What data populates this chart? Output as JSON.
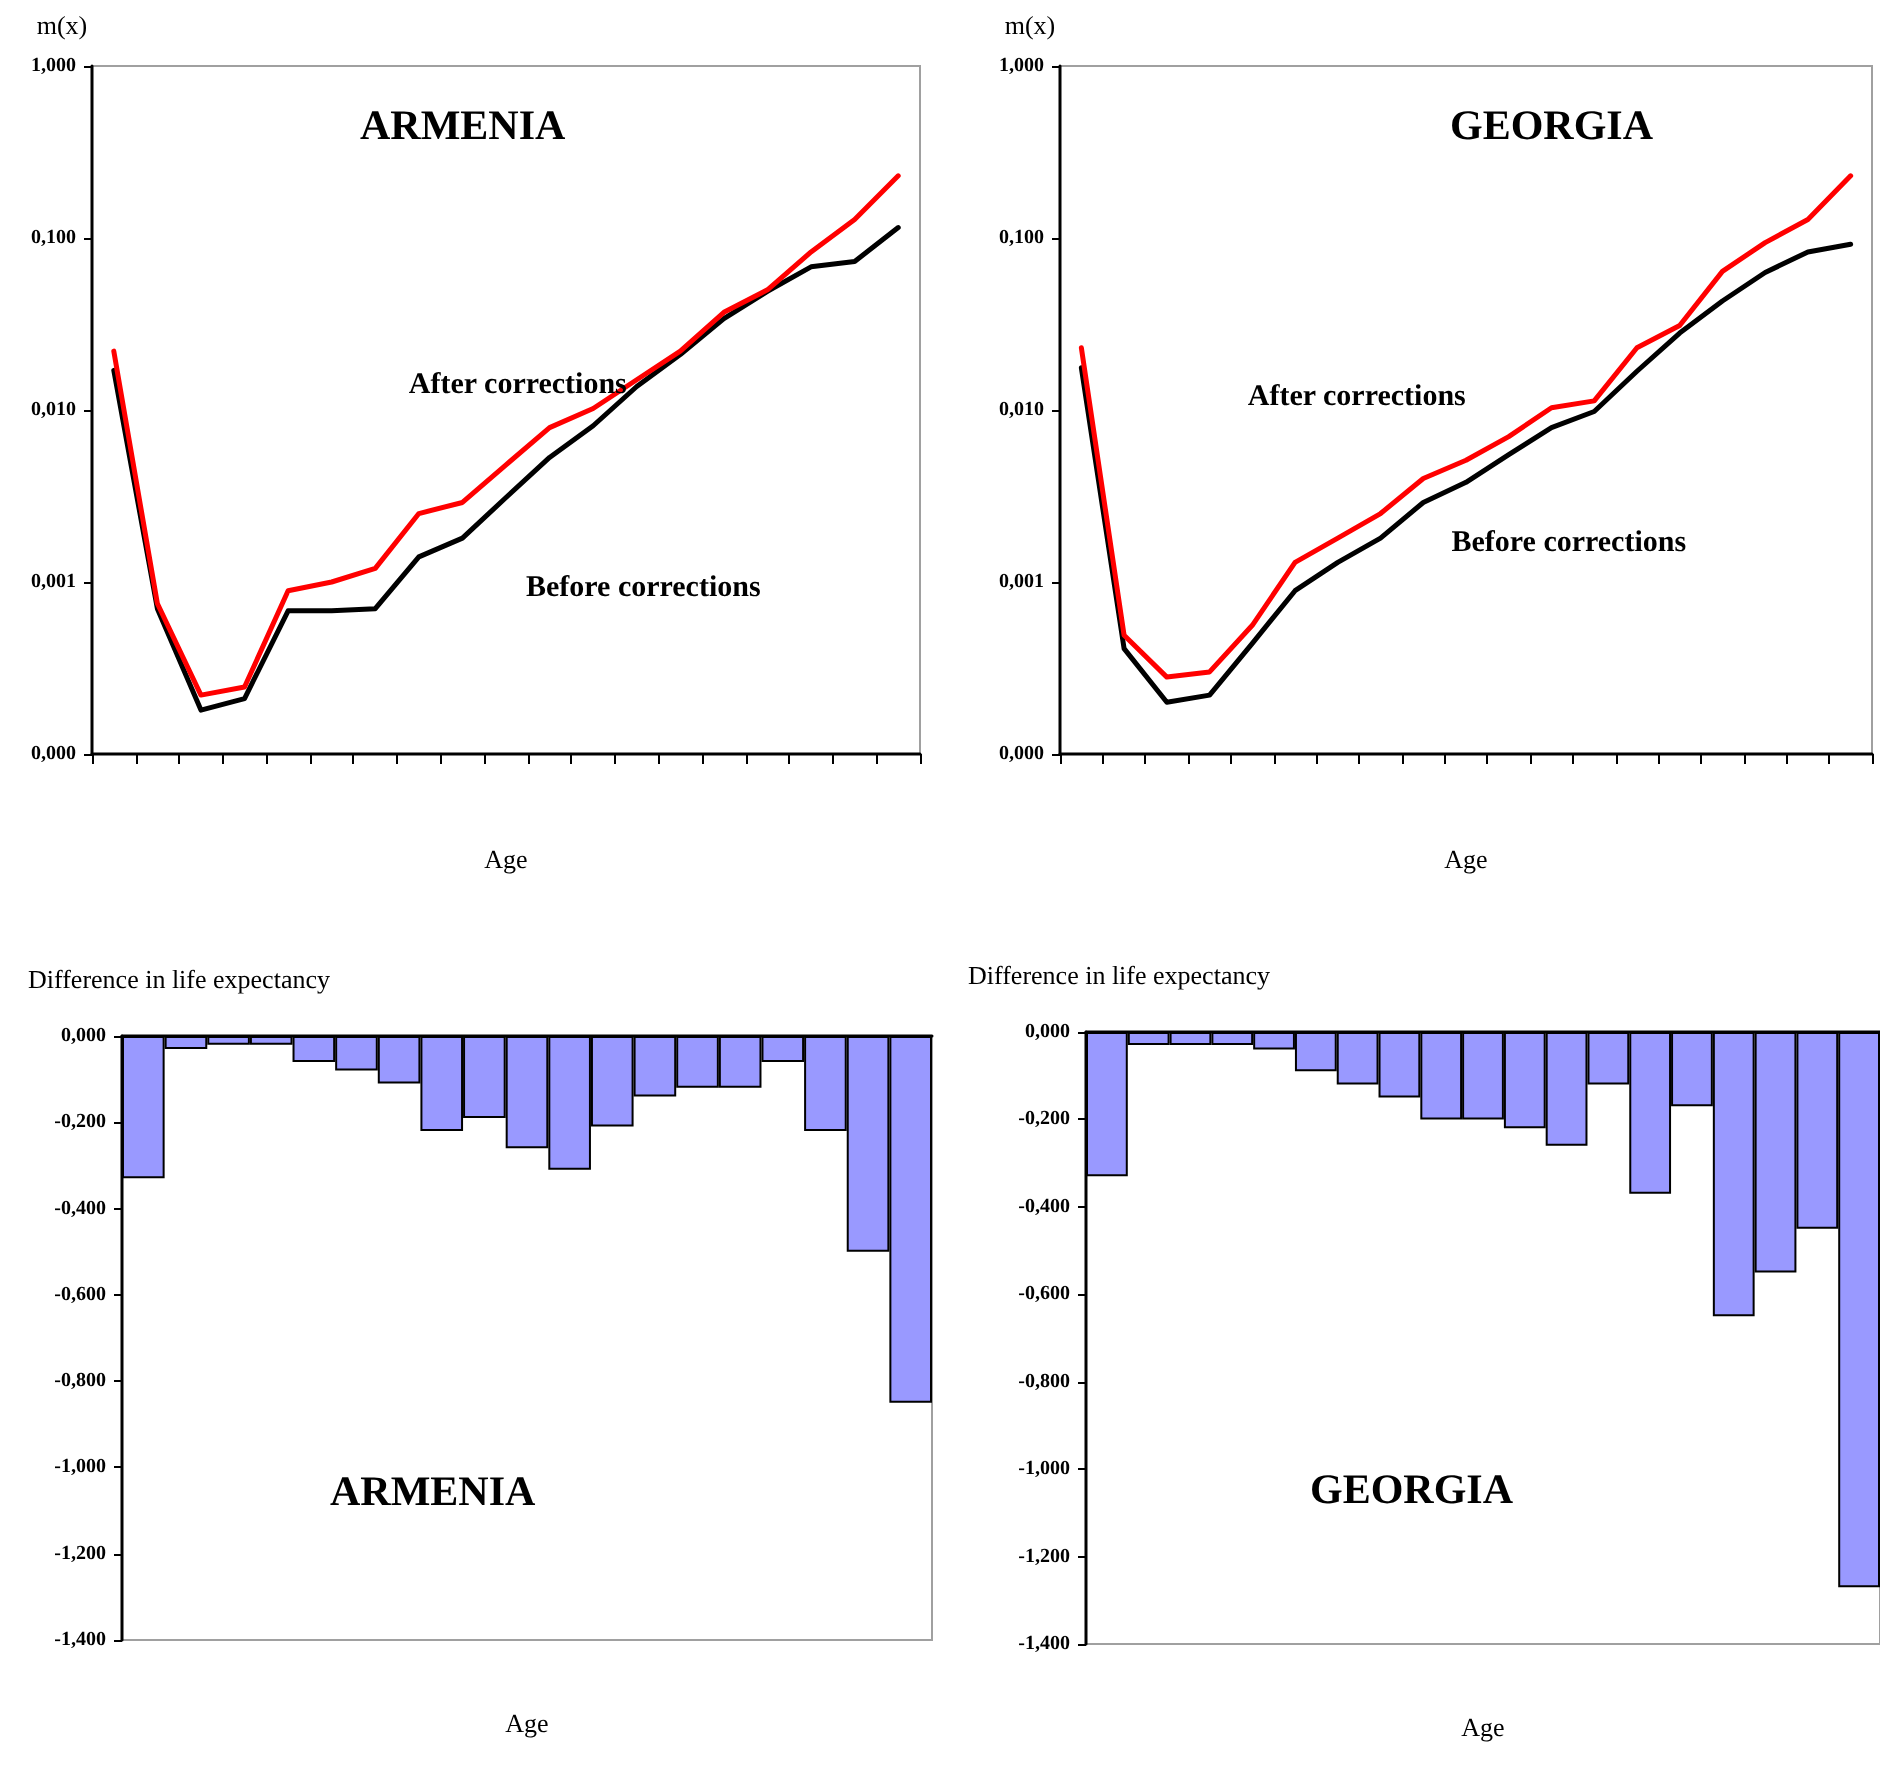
{
  "chart_data": [
    {
      "type": "line",
      "ylabel": "m(x)",
      "xlabel": "Age",
      "annotations": [
        "ARMENIA"
      ],
      "log": "y",
      "grid": false,
      "legend": false,
      "tick_labels": "y",
      "marker": "none",
      "line_style": "solid",
      "categories": [
        null,
        null,
        null,
        null,
        null,
        null,
        null,
        null,
        null,
        null,
        null,
        null,
        null,
        null,
        null,
        null,
        null,
        null,
        null
      ],
      "ylim": [
        0.0001,
        1
      ],
      "yticks": [
        {
          "value": 0.0001,
          "label": "0,000"
        },
        {
          "value": 0.001,
          "label": "0,001"
        },
        {
          "value": 0.01,
          "label": "0,010"
        },
        {
          "value": 0.1,
          "label": "0,100"
        },
        {
          "value": 1,
          "label": "1,000"
        }
      ],
      "series": [
        {
          "name": "After corrections",
          "color": "#ff0000",
          "values": [
            0.022,
            0.00075,
            0.00022,
            0.000245,
            0.00089,
            0.001,
            0.0012,
            0.0025,
            0.0029,
            0.0048,
            0.0079,
            0.0102,
            0.015,
            0.022,
            0.037,
            0.05,
            0.083,
            0.128,
            0.23
          ]
        },
        {
          "name": "Before corrections",
          "color": "#000000",
          "values": [
            0.017,
            0.0007,
            0.00018,
            0.00021,
            0.00068,
            0.00068,
            0.0007,
            0.0014,
            0.0018,
            0.0031,
            0.0053,
            0.0081,
            0.0137,
            0.021,
            0.034,
            0.049,
            0.068,
            0.073,
            0.115
          ]
        }
      ]
    },
    {
      "type": "line",
      "ylabel": "m(x)",
      "xlabel": "Age",
      "annotations": [
        "GEORGIA"
      ],
      "log": "y",
      "grid": false,
      "legend": false,
      "tick_labels": "y",
      "marker": "none",
      "line_style": "solid",
      "categories": [
        null,
        null,
        null,
        null,
        null,
        null,
        null,
        null,
        null,
        null,
        null,
        null,
        null,
        null,
        null,
        null,
        null,
        null,
        null
      ],
      "ylim": [
        0.0001,
        1
      ],
      "yticks": [
        {
          "value": 0.0001,
          "label": "0,000"
        },
        {
          "value": 0.001,
          "label": "0,001"
        },
        {
          "value": 0.01,
          "label": "0,010"
        },
        {
          "value": 0.1,
          "label": "0,100"
        },
        {
          "value": 1,
          "label": "1,000"
        }
      ],
      "series": [
        {
          "name": "After corrections",
          "color": "#ff0000",
          "values": [
            0.023,
            0.00049,
            0.00028,
            0.0003,
            0.00056,
            0.0013,
            0.0018,
            0.0025,
            0.004,
            0.0051,
            0.007,
            0.0103,
            0.0113,
            0.023,
            0.031,
            0.064,
            0.094,
            0.128,
            0.23
          ]
        },
        {
          "name": "Before corrections",
          "color": "#000000",
          "values": [
            0.0176,
            0.00041,
            0.0002,
            0.00022,
            0.00044,
            0.00089,
            0.0013,
            0.0018,
            0.0029,
            0.0038,
            0.0055,
            0.0079,
            0.0098,
            0.0168,
            0.028,
            0.043,
            0.063,
            0.083,
            0.092
          ]
        }
      ]
    },
    {
      "type": "bar",
      "ylabel": "Difference in life expectancy",
      "xlabel": "Age",
      "annotations": [
        "ARMENIA"
      ],
      "grid": false,
      "legend": false,
      "tick_labels": "y",
      "categories": [
        null,
        null,
        null,
        null,
        null,
        null,
        null,
        null,
        null,
        null,
        null,
        null,
        null,
        null,
        null,
        null,
        null,
        null,
        null
      ],
      "ylim": [
        -1.4,
        0
      ],
      "yticks": [
        {
          "value": -1.4,
          "label": "-1,400"
        },
        {
          "value": -1.2,
          "label": "-1,200"
        },
        {
          "value": -1,
          "label": "-1,000"
        },
        {
          "value": -0.8,
          "label": "-0,800"
        },
        {
          "value": -0.6,
          "label": "-0,600"
        },
        {
          "value": -0.4,
          "label": "-0,400"
        },
        {
          "value": -0.2,
          "label": "-0,200"
        },
        {
          "value": 0,
          "label": "0,000"
        }
      ],
      "color": "#9999ff",
      "values": [
        -0.33,
        -0.03,
        -0.02,
        -0.02,
        -0.06,
        -0.08,
        -0.11,
        -0.22,
        -0.19,
        -0.26,
        -0.31,
        -0.21,
        -0.14,
        -0.12,
        -0.12,
        -0.06,
        -0.22,
        -0.5,
        -0.85
      ]
    },
    {
      "type": "bar",
      "ylabel": "Difference in life expectancy",
      "xlabel": "Age",
      "annotations": [
        "GEORGIA"
      ],
      "grid": false,
      "legend": false,
      "tick_labels": "y",
      "categories": [
        null,
        null,
        null,
        null,
        null,
        null,
        null,
        null,
        null,
        null,
        null,
        null,
        null,
        null,
        null,
        null,
        null,
        null,
        null
      ],
      "ylim": [
        -1.4,
        0
      ],
      "yticks": [
        {
          "value": -1.4,
          "label": "-1,400"
        },
        {
          "value": -1.2,
          "label": "-1,200"
        },
        {
          "value": -1,
          "label": "-1,000"
        },
        {
          "value": -0.8,
          "label": "-0,800"
        },
        {
          "value": -0.6,
          "label": "-0,600"
        },
        {
          "value": -0.4,
          "label": "-0,400"
        },
        {
          "value": -0.2,
          "label": "-0,200"
        },
        {
          "value": 0,
          "label": "0,000"
        }
      ],
      "color": "#9999ff",
      "values": [
        -0.33,
        -0.03,
        -0.03,
        -0.03,
        -0.04,
        -0.09,
        -0.12,
        -0.15,
        -0.2,
        -0.2,
        -0.22,
        -0.26,
        -0.12,
        -0.37,
        -0.17,
        -0.65,
        -0.55,
        -0.45,
        -1.27
      ]
    }
  ]
}
